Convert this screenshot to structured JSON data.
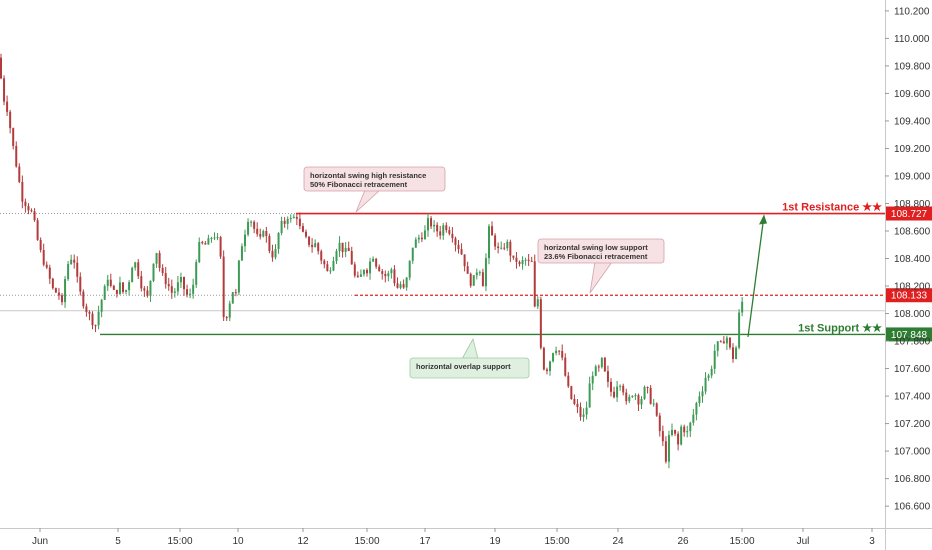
{
  "chart_data": {
    "type": "candlestick",
    "y_ticks": [
      "110.200",
      "110.000",
      "109.800",
      "109.600",
      "109.400",
      "109.200",
      "109.000",
      "108.800",
      "108.600",
      "108.400",
      "108.200",
      "108.000",
      "107.800",
      "107.600",
      "107.400",
      "107.200",
      "107.000",
      "106.800",
      "106.600"
    ],
    "x_ticks": [
      "Jun",
      "5",
      "15:00",
      "10",
      "12",
      "15:00",
      "17",
      "19",
      "15:00",
      "24",
      "26",
      "15:00",
      "Jul",
      "3"
    ],
    "ylim": [
      106.55,
      110.25
    ],
    "grid": false,
    "colors": {
      "up": "#3d9a55",
      "down": "#b23b3b",
      "resistance": "#e02020",
      "support": "#2e7d32",
      "axis_text": "#333333",
      "bubble_red_fill": "#f6e1e4",
      "bubble_green_fill": "#dff0e0"
    },
    "levels": [
      {
        "key": "resistance",
        "value": 108.727,
        "label": "1st Resistance ★★",
        "price_tag": "108.727"
      },
      {
        "key": "intermediate",
        "value": 108.133,
        "label": "",
        "price_tag": "108.133"
      },
      {
        "key": "support",
        "value": 107.848,
        "label": "1st Support ★★",
        "price_tag": "107.848"
      }
    ],
    "annotations": [
      {
        "key": "swing-high",
        "lines": [
          "horizontal swing high resistance",
          "50% Fibonacci retracement"
        ]
      },
      {
        "key": "swing-low",
        "lines": [
          "horizontal swing low support",
          "23.6% Fibonacci retracement"
        ]
      },
      {
        "key": "overlap",
        "lines": [
          "horizontal overlap support"
        ]
      }
    ],
    "series_path": [
      [
        0,
        109.86
      ],
      [
        2,
        109.56
      ],
      [
        5,
        109.55
      ],
      [
        8,
        109.46
      ],
      [
        12,
        109.26
      ],
      [
        17,
        109.05
      ],
      [
        22,
        108.84
      ],
      [
        28,
        108.77
      ],
      [
        33,
        108.72
      ],
      [
        37,
        108.55
      ],
      [
        42,
        108.41
      ],
      [
        48,
        108.29
      ],
      [
        54,
        108.15
      ],
      [
        58,
        108.16
      ],
      [
        62,
        108.06
      ],
      [
        66,
        108.31
      ],
      [
        70,
        108.41
      ],
      [
        74,
        108.39
      ],
      [
        78,
        108.21
      ],
      [
        82,
        108.1
      ],
      [
        86,
        108.03
      ],
      [
        90,
        107.98
      ],
      [
        95,
        107.9
      ],
      [
        100,
        108.06
      ],
      [
        104,
        108.16
      ],
      [
        108,
        108.27
      ],
      [
        112,
        108.16
      ],
      [
        116,
        108.15
      ],
      [
        120,
        108.21
      ],
      [
        124,
        108.14
      ],
      [
        128,
        108.2
      ],
      [
        132,
        108.35
      ],
      [
        136,
        108.37
      ],
      [
        140,
        108.23
      ],
      [
        144,
        108.16
      ],
      [
        148,
        108.11
      ],
      [
        152,
        108.33
      ],
      [
        156,
        108.47
      ],
      [
        160,
        108.32
      ],
      [
        164,
        108.25
      ],
      [
        168,
        108.21
      ],
      [
        172,
        108.15
      ],
      [
        176,
        108.17
      ],
      [
        180,
        108.26
      ],
      [
        184,
        108.18
      ],
      [
        188,
        108.12
      ],
      [
        192,
        108.14
      ],
      [
        196,
        108.39
      ],
      [
        200,
        108.52
      ],
      [
        204,
        108.49
      ],
      [
        208,
        108.52
      ],
      [
        212,
        108.56
      ],
      [
        216,
        108.57
      ],
      [
        220,
        108.48
      ],
      [
        224,
        107.93
      ],
      [
        228,
        108.02
      ],
      [
        232,
        108.17
      ],
      [
        236,
        108.14
      ],
      [
        240,
        108.45
      ],
      [
        244,
        108.56
      ],
      [
        248,
        108.69
      ],
      [
        252,
        108.67
      ],
      [
        256,
        108.57
      ],
      [
        260,
        108.53
      ],
      [
        264,
        108.64
      ],
      [
        268,
        108.49
      ],
      [
        272,
        108.42
      ],
      [
        276,
        108.46
      ],
      [
        280,
        108.65
      ],
      [
        284,
        108.65
      ],
      [
        288,
        108.71
      ],
      [
        292,
        108.67
      ],
      [
        296,
        108.73
      ],
      [
        300,
        108.62
      ],
      [
        304,
        108.56
      ],
      [
        308,
        108.52
      ],
      [
        312,
        108.49
      ],
      [
        316,
        108.51
      ],
      [
        320,
        108.41
      ],
      [
        324,
        108.36
      ],
      [
        328,
        108.29
      ],
      [
        332,
        108.37
      ],
      [
        336,
        108.47
      ],
      [
        340,
        108.51
      ],
      [
        344,
        108.44
      ],
      [
        348,
        108.47
      ],
      [
        352,
        108.36
      ],
      [
        356,
        108.23
      ],
      [
        360,
        108.26
      ],
      [
        364,
        108.33
      ],
      [
        368,
        108.31
      ],
      [
        372,
        108.44
      ],
      [
        376,
        108.36
      ],
      [
        380,
        108.32
      ],
      [
        384,
        108.27
      ],
      [
        388,
        108.28
      ],
      [
        392,
        108.33
      ],
      [
        396,
        108.17
      ],
      [
        400,
        108.22
      ],
      [
        404,
        108.17
      ],
      [
        408,
        108.29
      ],
      [
        412,
        108.48
      ],
      [
        416,
        108.53
      ],
      [
        420,
        108.56
      ],
      [
        424,
        108.57
      ],
      [
        428,
        108.67
      ],
      [
        432,
        108.64
      ],
      [
        436,
        108.61
      ],
      [
        440,
        108.58
      ],
      [
        444,
        108.65
      ],
      [
        448,
        108.61
      ],
      [
        452,
        108.58
      ],
      [
        456,
        108.5
      ],
      [
        460,
        108.47
      ],
      [
        464,
        108.38
      ],
      [
        468,
        108.26
      ],
      [
        472,
        108.21
      ],
      [
        476,
        108.31
      ],
      [
        480,
        108.32
      ],
      [
        484,
        108.18
      ],
      [
        488,
        108.63
      ],
      [
        492,
        108.56
      ],
      [
        496,
        108.49
      ],
      [
        500,
        108.44
      ],
      [
        504,
        108.49
      ],
      [
        508,
        108.51
      ],
      [
        512,
        108.38
      ],
      [
        516,
        108.39
      ],
      [
        520,
        108.34
      ],
      [
        524,
        108.4
      ],
      [
        528,
        108.37
      ],
      [
        532,
        108.37
      ],
      [
        534,
        108.02
      ],
      [
        538,
        108.11
      ],
      [
        542,
        107.63
      ],
      [
        546,
        107.58
      ],
      [
        550,
        107.66
      ],
      [
        554,
        107.75
      ],
      [
        558,
        107.75
      ],
      [
        562,
        107.67
      ],
      [
        566,
        107.52
      ],
      [
        570,
        107.4
      ],
      [
        574,
        107.34
      ],
      [
        578,
        107.3
      ],
      [
        582,
        107.23
      ],
      [
        586,
        107.29
      ],
      [
        590,
        107.5
      ],
      [
        594,
        107.6
      ],
      [
        598,
        107.58
      ],
      [
        602,
        107.66
      ],
      [
        606,
        107.53
      ],
      [
        610,
        107.44
      ],
      [
        614,
        107.41
      ],
      [
        618,
        107.51
      ],
      [
        622,
        107.49
      ],
      [
        626,
        107.34
      ],
      [
        630,
        107.39
      ],
      [
        634,
        107.44
      ],
      [
        638,
        107.36
      ],
      [
        642,
        107.39
      ],
      [
        646,
        107.48
      ],
      [
        650,
        107.37
      ],
      [
        654,
        107.34
      ],
      [
        658,
        107.19
      ],
      [
        662,
        107.09
      ],
      [
        666,
        106.94
      ],
      [
        670,
        107.15
      ],
      [
        674,
        107.14
      ],
      [
        678,
        107.04
      ],
      [
        682,
        107.21
      ],
      [
        686,
        107.11
      ],
      [
        690,
        107.19
      ],
      [
        694,
        107.28
      ],
      [
        698,
        107.39
      ],
      [
        702,
        107.44
      ],
      [
        706,
        107.55
      ],
      [
        710,
        107.54
      ],
      [
        714,
        107.72
      ],
      [
        718,
        107.78
      ],
      [
        722,
        107.77
      ],
      [
        726,
        107.85
      ],
      [
        730,
        107.74
      ],
      [
        734,
        107.66
      ],
      [
        738,
        107.84
      ],
      [
        740,
        108.12
      ],
      [
        742,
        108.09
      ],
      [
        745,
        107.97
      ]
    ],
    "arrow_target_value": 108.727
  }
}
